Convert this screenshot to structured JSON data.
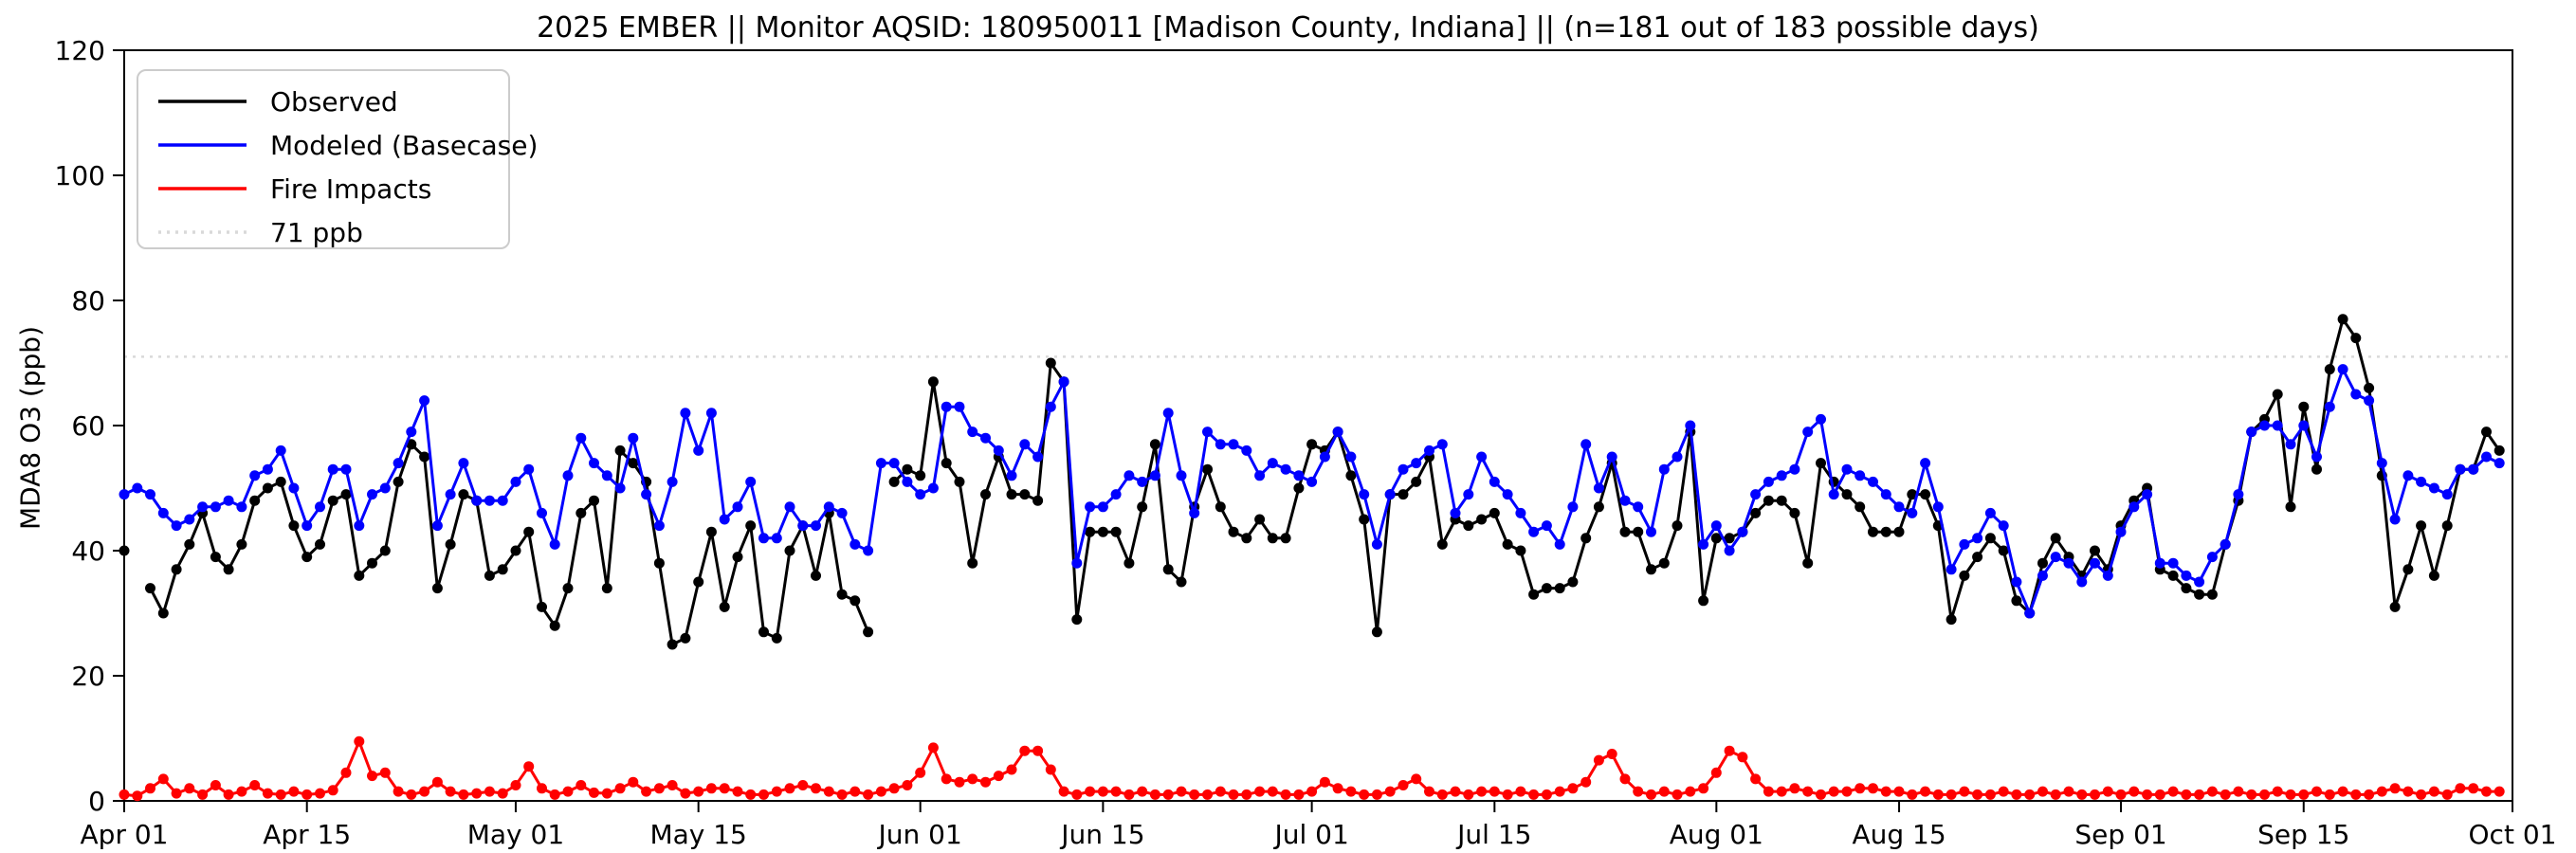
{
  "chart_data": {
    "type": "line",
    "title": "2025 EMBER || Monitor AQSID: 180950011 [Madison County, Indiana] || (n=181 out of 183 possible days)",
    "ylabel": "MDA8 O3 (ppb)",
    "ylim": [
      0,
      120
    ],
    "yticks": [
      0,
      20,
      40,
      60,
      80,
      100,
      120
    ],
    "x_range_days": 183,
    "x_tick_days": [
      0,
      14,
      30,
      44,
      61,
      75,
      91,
      105,
      122,
      136,
      153,
      167,
      183
    ],
    "x_tick_labels": [
      "Apr 01",
      "Apr 15",
      "May 01",
      "May 15",
      "Jun 01",
      "Jun 15",
      "Jul 01",
      "Jul 15",
      "Aug 01",
      "Aug 15",
      "Sep 01",
      "Sep 15",
      "Oct 01"
    ],
    "grid": false,
    "legend_position": "upper-left",
    "threshold": {
      "value": 71,
      "label": "71 ppb",
      "color": "#d9d9d9"
    },
    "series": [
      {
        "name": "Observed",
        "color": "#000000",
        "values": [
          40,
          null,
          34,
          30,
          37,
          41,
          46,
          39,
          37,
          41,
          48,
          50,
          51,
          44,
          39,
          41,
          48,
          49,
          36,
          38,
          40,
          51,
          57,
          55,
          34,
          41,
          49,
          48,
          36,
          37,
          40,
          43,
          31,
          28,
          34,
          46,
          48,
          34,
          56,
          54,
          51,
          38,
          25,
          26,
          35,
          43,
          31,
          39,
          44,
          27,
          26,
          40,
          44,
          36,
          46,
          33,
          32,
          27,
          null,
          51,
          53,
          52,
          67,
          54,
          51,
          38,
          49,
          55,
          49,
          49,
          48,
          70,
          67,
          29,
          43,
          43,
          43,
          38,
          47,
          57,
          37,
          35,
          47,
          53,
          47,
          43,
          42,
          45,
          42,
          42,
          50,
          57,
          56,
          59,
          52,
          45,
          27,
          49,
          49,
          51,
          55,
          41,
          45,
          44,
          45,
          46,
          41,
          40,
          33,
          34,
          34,
          35,
          42,
          47,
          54,
          43,
          43,
          37,
          38,
          44,
          59,
          32,
          42,
          42,
          43,
          46,
          48,
          48,
          46,
          38,
          54,
          51,
          49,
          47,
          43,
          43,
          43,
          49,
          49,
          44,
          29,
          36,
          39,
          42,
          40,
          32,
          30,
          38,
          42,
          39,
          36,
          40,
          37,
          44,
          48,
          50,
          37,
          36,
          34,
          33,
          33,
          41,
          48,
          59,
          61,
          65,
          47,
          63,
          53,
          69,
          77,
          74,
          66,
          52,
          31,
          37,
          44,
          36,
          44,
          53,
          53,
          59,
          56
        ]
      },
      {
        "name": "Modeled (Basecase)",
        "color": "#0000ff",
        "values": [
          49,
          50,
          49,
          46,
          44,
          45,
          47,
          47,
          48,
          47,
          52,
          53,
          56,
          50,
          44,
          47,
          53,
          53,
          44,
          49,
          50,
          54,
          59,
          64,
          44,
          49,
          54,
          48,
          48,
          48,
          51,
          53,
          46,
          41,
          52,
          58,
          54,
          52,
          50,
          58,
          49,
          44,
          51,
          62,
          56,
          62,
          45,
          47,
          51,
          42,
          42,
          47,
          44,
          44,
          47,
          46,
          41,
          40,
          54,
          54,
          51,
          49,
          50,
          63,
          63,
          59,
          58,
          56,
          52,
          57,
          55,
          63,
          67,
          38,
          47,
          47,
          49,
          52,
          51,
          52,
          62,
          52,
          46,
          59,
          57,
          57,
          56,
          52,
          54,
          53,
          52,
          51,
          55,
          59,
          55,
          49,
          41,
          49,
          53,
          54,
          56,
          57,
          46,
          49,
          55,
          51,
          49,
          46,
          43,
          44,
          41,
          47,
          57,
          50,
          55,
          48,
          47,
          43,
          53,
          55,
          60,
          41,
          44,
          40,
          43,
          49,
          51,
          52,
          53,
          59,
          61,
          49,
          53,
          52,
          51,
          49,
          47,
          46,
          54,
          47,
          37,
          41,
          42,
          46,
          44,
          35,
          30,
          36,
          39,
          38,
          35,
          38,
          36,
          43,
          47,
          49,
          38,
          38,
          36,
          35,
          39,
          41,
          49,
          59,
          60,
          60,
          57,
          60,
          55,
          63,
          69,
          65,
          64,
          54,
          45,
          52,
          51,
          50,
          49,
          53,
          53,
          55,
          54
        ]
      },
      {
        "name": "Fire Impacts",
        "color": "#ff0000",
        "values": [
          1,
          0.8,
          2,
          3.5,
          1.2,
          2,
          1,
          2.5,
          1,
          1.5,
          2.5,
          1.2,
          1,
          1.5,
          1,
          1.2,
          1.7,
          4.5,
          9.5,
          4,
          4.5,
          1.5,
          1,
          1.5,
          3,
          1.5,
          1,
          1.2,
          1.5,
          1.2,
          2.5,
          5.5,
          2,
          1,
          1.5,
          2.5,
          1.3,
          1.2,
          2,
          3,
          1.5,
          2,
          2.5,
          1.2,
          1.5,
          2,
          2,
          1.5,
          1,
          1,
          1.5,
          2,
          2.5,
          2,
          1.5,
          1,
          1.5,
          1,
          1.5,
          2,
          2.5,
          4.5,
          8.5,
          3.5,
          3,
          3.5,
          3,
          4,
          5,
          8,
          8,
          5,
          1.5,
          1,
          1.5,
          1.5,
          1.5,
          1,
          1.5,
          1,
          1,
          1.5,
          1,
          1,
          1.5,
          1,
          1,
          1.5,
          1.5,
          1,
          1,
          1.5,
          3,
          2,
          1.5,
          1,
          1,
          1.5,
          2.5,
          3.5,
          1.5,
          1,
          1.5,
          1,
          1.5,
          1.5,
          1,
          1.5,
          1,
          1,
          1.5,
          2,
          3,
          6.5,
          7.5,
          3.5,
          1.5,
          1,
          1.5,
          1,
          1.5,
          2,
          4.5,
          8,
          7,
          3.5,
          1.5,
          1.5,
          2,
          1.5,
          1,
          1.5,
          1.5,
          2,
          2,
          1.5,
          1.5,
          1,
          1.5,
          1,
          1,
          1.5,
          1,
          1,
          1.5,
          1,
          1,
          1.5,
          1,
          1.5,
          1,
          1,
          1.5,
          1,
          1.5,
          1,
          1,
          1.5,
          1,
          1,
          1.5,
          1,
          1.5,
          1,
          1,
          1.5,
          1,
          1,
          1.5,
          1,
          1.5,
          1,
          1,
          1.5,
          2,
          1.5,
          1,
          1.5,
          1,
          2,
          2,
          1.5,
          1.5
        ]
      }
    ]
  }
}
